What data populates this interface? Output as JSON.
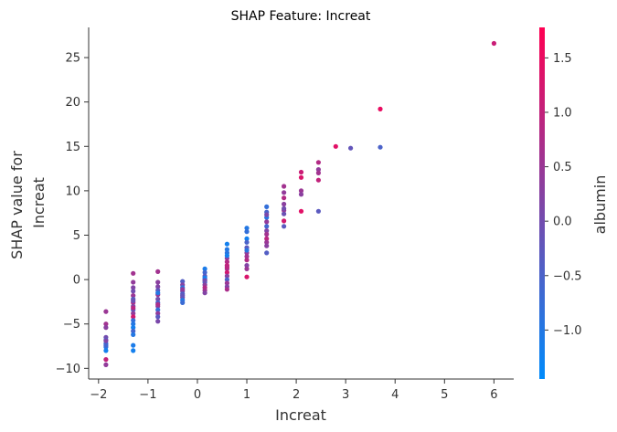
{
  "chart_data": {
    "type": "scatter",
    "title": "SHAP Feature: Increat",
    "xlabel": "Increat",
    "ylabel": [
      "SHAP value for",
      "Increat"
    ],
    "xlim": [
      -2.2,
      6.4
    ],
    "ylim": [
      -11.2,
      28.4
    ],
    "xticks": [
      -2,
      -1,
      0,
      1,
      2,
      3,
      4,
      5,
      6
    ],
    "yticks": [
      -10,
      -5,
      0,
      5,
      10,
      15,
      20,
      25
    ],
    "colorbar": {
      "label": "albumin",
      "range": [
        -1.45,
        1.78
      ],
      "ticks": [
        -1.0,
        -0.5,
        0.0,
        0.5,
        1.0,
        1.5
      ],
      "colors": [
        "#008bfb",
        "#ff0052"
      ]
    },
    "points": [
      [
        -1.85,
        -3.6,
        0.5
      ],
      [
        -1.85,
        -5.0,
        0.6
      ],
      [
        -1.85,
        -5.4,
        0.3
      ],
      [
        -1.85,
        -6.5,
        0.0
      ],
      [
        -1.85,
        -6.8,
        -0.4
      ],
      [
        -1.85,
        -7.2,
        -0.8
      ],
      [
        -1.85,
        -7.6,
        -1.0
      ],
      [
        -1.85,
        -8.0,
        -1.2
      ],
      [
        -1.85,
        -9.0,
        1.0
      ],
      [
        -1.85,
        -9.6,
        0.4
      ],
      [
        -1.85,
        -7.4,
        -0.6
      ],
      [
        -1.85,
        -6.9,
        0.2
      ],
      [
        -1.3,
        0.7,
        0.6
      ],
      [
        -1.3,
        -0.3,
        0.4
      ],
      [
        -1.3,
        -0.9,
        0.2
      ],
      [
        -1.3,
        -1.3,
        0.0
      ],
      [
        -1.3,
        -1.8,
        0.5
      ],
      [
        -1.3,
        -2.2,
        -0.3
      ],
      [
        -1.3,
        -2.6,
        0.8
      ],
      [
        -1.3,
        -3.0,
        0.2
      ],
      [
        -1.3,
        -3.4,
        -0.5
      ],
      [
        -1.3,
        -3.8,
        0.4
      ],
      [
        -1.3,
        -4.2,
        1.2
      ],
      [
        -1.3,
        -4.6,
        -0.8
      ],
      [
        -1.3,
        -5.0,
        -1.0
      ],
      [
        -1.3,
        -5.4,
        -1.2
      ],
      [
        -1.3,
        -5.8,
        -0.6
      ],
      [
        -1.3,
        -6.2,
        -1.0
      ],
      [
        -1.3,
        -7.4,
        -1.1
      ],
      [
        -1.3,
        -8.0,
        -1.2
      ],
      [
        -1.3,
        -3.2,
        0.9
      ],
      [
        -1.3,
        -2.4,
        -0.1
      ],
      [
        -0.8,
        0.9,
        0.6
      ],
      [
        -0.8,
        -0.3,
        0.3
      ],
      [
        -0.8,
        -0.8,
        0.2
      ],
      [
        -0.8,
        -1.2,
        -0.2
      ],
      [
        -0.8,
        -1.7,
        0.5
      ],
      [
        -0.8,
        -2.2,
        0.0
      ],
      [
        -0.8,
        -2.6,
        -0.5
      ],
      [
        -0.8,
        -3.0,
        0.3
      ],
      [
        -0.8,
        -3.4,
        -0.8
      ],
      [
        -0.8,
        -3.8,
        0.4
      ],
      [
        -0.8,
        -4.2,
        -0.3
      ],
      [
        -0.8,
        -4.7,
        0.1
      ],
      [
        -0.8,
        -1.5,
        -1.0
      ],
      [
        -0.8,
        -2.8,
        0.7
      ],
      [
        -0.3,
        -0.2,
        -0.4
      ],
      [
        -0.3,
        -0.6,
        0.2
      ],
      [
        -0.3,
        -0.9,
        -0.9
      ],
      [
        -0.3,
        -1.3,
        0.1
      ],
      [
        -0.3,
        -1.6,
        -0.5
      ],
      [
        -0.3,
        -2.0,
        0.3
      ],
      [
        -0.3,
        -2.3,
        -1.0
      ],
      [
        -0.3,
        -2.6,
        -0.7
      ],
      [
        -0.3,
        -1.1,
        0.4
      ],
      [
        -0.3,
        -1.8,
        -0.2
      ],
      [
        0.15,
        1.2,
        -1.1
      ],
      [
        0.15,
        0.8,
        -0.6
      ],
      [
        0.15,
        0.4,
        -0.3
      ],
      [
        0.15,
        0.0,
        0.5
      ],
      [
        0.15,
        -0.3,
        -0.8
      ],
      [
        0.15,
        -0.6,
        0.3
      ],
      [
        0.15,
        -0.9,
        0.8
      ],
      [
        0.15,
        -1.2,
        0.6
      ],
      [
        0.15,
        -1.5,
        0.2
      ],
      [
        0.15,
        0.2,
        -1.2
      ],
      [
        0.15,
        -0.1,
        0.0
      ],
      [
        0.6,
        4.0,
        -1.2
      ],
      [
        0.6,
        3.0,
        -0.9
      ],
      [
        0.6,
        2.4,
        0.4
      ],
      [
        0.6,
        2.0,
        0.8
      ],
      [
        0.6,
        1.6,
        1.0
      ],
      [
        0.6,
        1.2,
        0.6
      ],
      [
        0.6,
        0.8,
        1.2
      ],
      [
        0.6,
        0.4,
        0.3
      ],
      [
        0.6,
        0.0,
        -0.5
      ],
      [
        0.6,
        -0.4,
        0.5
      ],
      [
        0.6,
        -0.8,
        0.2
      ],
      [
        0.6,
        -1.1,
        0.7
      ],
      [
        0.6,
        3.4,
        -1.0
      ],
      [
        0.6,
        2.7,
        -1.2
      ],
      [
        0.6,
        1.4,
        0.9
      ],
      [
        1.0,
        5.8,
        -1.0
      ],
      [
        1.0,
        5.4,
        -0.8
      ],
      [
        1.0,
        4.6,
        -1.2
      ],
      [
        1.0,
        4.2,
        -0.5
      ],
      [
        1.0,
        3.6,
        -0.3
      ],
      [
        1.0,
        3.0,
        0.4
      ],
      [
        1.0,
        2.6,
        0.6
      ],
      [
        1.0,
        2.2,
        0.8
      ],
      [
        1.0,
        1.6,
        0.2
      ],
      [
        1.0,
        1.2,
        0.5
      ],
      [
        1.0,
        0.3,
        1.3
      ],
      [
        1.0,
        3.3,
        -0.9
      ],
      [
        1.4,
        8.2,
        -0.8
      ],
      [
        1.4,
        7.6,
        -0.5
      ],
      [
        1.4,
        7.0,
        -1.0
      ],
      [
        1.4,
        6.5,
        0.4
      ],
      [
        1.4,
        6.0,
        -0.6
      ],
      [
        1.4,
        5.5,
        0.2
      ],
      [
        1.4,
        5.1,
        0.6
      ],
      [
        1.4,
        4.6,
        0.9
      ],
      [
        1.4,
        4.2,
        0.5
      ],
      [
        1.4,
        3.8,
        0.3
      ],
      [
        1.4,
        3.0,
        -0.4
      ],
      [
        1.4,
        7.3,
        0.1
      ],
      [
        1.75,
        10.5,
        0.6
      ],
      [
        1.75,
        9.8,
        0.4
      ],
      [
        1.75,
        9.2,
        0.8
      ],
      [
        1.75,
        8.5,
        0.3
      ],
      [
        1.75,
        7.8,
        0.5
      ],
      [
        1.75,
        7.4,
        -0.1
      ],
      [
        1.75,
        6.6,
        1.2
      ],
      [
        1.75,
        6.0,
        -0.3
      ],
      [
        1.75,
        8.0,
        0.0
      ],
      [
        2.1,
        12.1,
        1.1
      ],
      [
        2.1,
        11.5,
        1.3
      ],
      [
        2.1,
        10.0,
        0.5
      ],
      [
        2.1,
        9.6,
        0.3
      ],
      [
        2.1,
        7.7,
        1.4
      ],
      [
        2.45,
        13.2,
        0.8
      ],
      [
        2.45,
        12.4,
        0.4
      ],
      [
        2.45,
        12.0,
        0.6
      ],
      [
        2.45,
        11.2,
        1.0
      ],
      [
        2.45,
        7.7,
        -0.3
      ],
      [
        2.8,
        15.0,
        1.4
      ],
      [
        3.1,
        14.8,
        -0.2
      ],
      [
        3.7,
        19.2,
        1.5
      ],
      [
        3.7,
        14.9,
        -0.5
      ],
      [
        6.0,
        26.6,
        1.1
      ]
    ]
  }
}
